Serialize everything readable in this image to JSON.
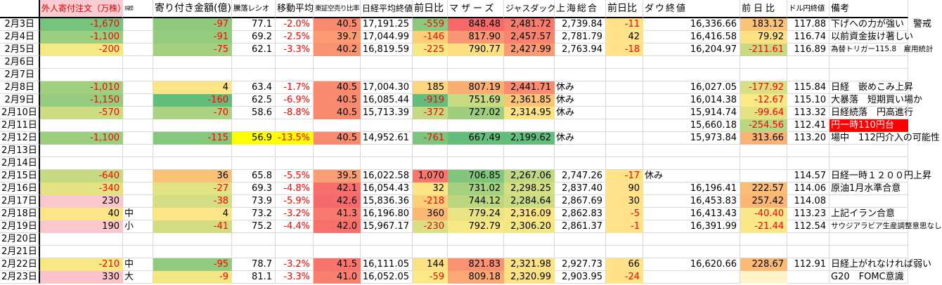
{
  "sheet": {
    "description_labels": {
      "holiday_label": "休み"
    },
    "table": {
      "columns": [
        {
          "key": "date",
          "label": "",
          "width": 57,
          "align": "right",
          "header_class": "hdr-md"
        },
        {
          "key": "foreign",
          "label": "外人寄付注文（万株）",
          "width": 118,
          "align": "right",
          "header_class": "hdr-sm",
          "header_bg": "#F9CBD2",
          "header_color": "#E60000"
        },
        {
          "key": "size",
          "label": "規模",
          "width": 43,
          "align": "left",
          "header_class": "hdr-tiny"
        },
        {
          "key": "opening",
          "label": "寄り付き金額(億)",
          "width": 112,
          "align": "right",
          "header_class": "hdr-lg"
        },
        {
          "key": "ratio",
          "label": "騰落レシオ",
          "width": 62,
          "align": "right",
          "header_class": "hdr-xs"
        },
        {
          "key": "ma",
          "label": "移動平均",
          "width": 54,
          "align": "right",
          "header_class": "hdr-md"
        },
        {
          "key": "short",
          "label": "東証空売り比率",
          "width": 67,
          "align": "right",
          "header_class": "hdr-xxs"
        },
        {
          "key": "nikkei",
          "label": "日経平均終値",
          "width": 74,
          "align": "right",
          "header_class": "hdr-sm"
        },
        {
          "key": "nikkei_chg",
          "label": "前日比",
          "width": 50,
          "align": "right",
          "header_class": "hdr-lg"
        },
        {
          "key": "mothers",
          "label": "マザーズ",
          "width": 80,
          "align": "right",
          "header_class": "hdr-spaced"
        },
        {
          "key": "jasdaq",
          "label": "ジャスダック",
          "width": 72,
          "align": "right",
          "header_class": "hdr-sm"
        },
        {
          "key": "shanghai",
          "label": "上海総合",
          "width": 73,
          "align": "right",
          "header_class": "hdr-spaced2"
        },
        {
          "key": "shanghai_chg",
          "label": "前日比",
          "width": 53,
          "align": "right",
          "header_class": "hdr-lg"
        },
        {
          "key": "dow",
          "label": "ダウ終値",
          "width": 138,
          "align": "right",
          "header_class": "hdr-spaced2"
        },
        {
          "key": "dow_chg",
          "label": "前日比",
          "width": 67,
          "align": "right",
          "header_class": "hdr-spaced"
        },
        {
          "key": "usdjpy",
          "label": "ドル円終値",
          "width": 60,
          "align": "right",
          "header_class": "hdr-xs"
        },
        {
          "key": "remark",
          "label": "備考",
          "width": 112,
          "align": "left",
          "header_class": "hdr-md"
        }
      ],
      "rows": [
        [
          "2月3日",
          [
            "-1,670",
            "#76C47E",
            "r"
          ],
          null,
          [
            "-97",
            "#8FCA7E",
            "r"
          ],
          "77.1",
          [
            "-2.0%",
            null,
            "r"
          ],
          [
            "40.5",
            "#F98A70"
          ],
          "17,191.25",
          [
            "-559",
            "#8CC97E",
            "r"
          ],
          [
            "848.48",
            "#F8696B"
          ],
          [
            "2,481.72",
            "#F87C6D"
          ],
          "2,739.84",
          [
            "-11",
            "#FFE289",
            "r"
          ],
          "16,336.66",
          [
            "183.12",
            "#FBC377"
          ],
          "117.88",
          "下げへの力が強い　警戒"
        ],
        [
          "2月4日",
          [
            "-1,100",
            "#9CCE7F",
            "r"
          ],
          null,
          [
            "-91",
            "#94CC7F",
            "r"
          ],
          "69.2",
          [
            "-2.5%",
            null,
            "r"
          ],
          [
            "39.7",
            "#FA9B73"
          ],
          "17,044.99",
          [
            "-146",
            "#FBCF7A",
            "r"
          ],
          [
            "817.90",
            "#FA9673"
          ],
          [
            "2,457.57",
            "#F8836E"
          ],
          "2,781.79",
          [
            "42",
            "#FFE289"
          ],
          "16,416.58",
          [
            "79.92",
            "#FCE184"
          ],
          "116.74",
          "以前資金抜け著しい"
        ],
        [
          "2月5日",
          [
            "-200",
            "#F5E984",
            "r"
          ],
          null,
          [
            "-75",
            "#A5D080",
            "r"
          ],
          "62.1",
          [
            "-3.3%",
            null,
            "r"
          ],
          [
            "40.2",
            "#FA9272"
          ],
          "16,819.59",
          [
            "-225",
            "#F7E884",
            "r"
          ],
          [
            "790.77",
            "#FBDF80"
          ],
          [
            "2,427.99",
            "#FA9B73"
          ],
          "2,763.94",
          [
            "-18",
            "#FFE289",
            "r"
          ],
          "16,204.97",
          [
            "-211.61",
            "#C9DB81",
            "r"
          ],
          "116.89",
          [
            "為替トリガー115.8　雇用統計",
            null,
            "s"
          ]
        ],
        [
          "2月6日",
          null,
          null,
          null,
          null,
          null,
          null,
          null,
          null,
          null,
          null,
          null,
          null,
          null,
          null,
          null,
          null
        ],
        [
          "2月7日",
          null,
          null,
          null,
          null,
          null,
          null,
          null,
          null,
          null,
          null,
          null,
          null,
          null,
          null,
          null,
          null
        ],
        [
          "2月8日",
          [
            "-1,010",
            "#A0CF80",
            "r"
          ],
          null,
          [
            "4",
            "#FBE586"
          ],
          "63.4",
          [
            "-1.7%",
            null,
            "r"
          ],
          [
            "40.5",
            "#F98A70"
          ],
          "17,004.30",
          [
            "185",
            "#FBD67D"
          ],
          [
            "807.19",
            "#FBAE74"
          ],
          [
            "2,441.71",
            "#F98B70"
          ],
          [
            "休み",
            null,
            "l"
          ],
          null,
          "16,027.05",
          [
            "-177.92",
            "#D9E082",
            "r"
          ],
          "115.84",
          "日経　嵌めこみ上昇"
        ],
        [
          "2月9日",
          [
            "-1,150",
            "#95CC7F",
            "r"
          ],
          null,
          [
            "-160",
            "#63BE7B",
            "r"
          ],
          "62.5",
          [
            "-6.9%",
            null,
            "r"
          ],
          [
            "40.5",
            "#F98A70"
          ],
          "16,085.44",
          [
            "-919",
            "#63BE7B",
            "r"
          ],
          [
            "751.69",
            "#C9DB81"
          ],
          [
            "2,361.85",
            "#FBC577"
          ],
          [
            "休み",
            null,
            "l"
          ],
          null,
          "16,014.38",
          [
            "-12.67",
            "#FAE985",
            "r"
          ],
          "115.10",
          "大暴落　短期買い場か"
        ],
        [
          "2月10日",
          [
            "-570",
            "#CCDC82",
            "r"
          ],
          null,
          [
            "-70",
            "#ACD381",
            "r"
          ],
          "58.6",
          [
            "-8.8%",
            null,
            "r"
          ],
          [
            "40.5",
            "#F98A70"
          ],
          "15,713.39",
          [
            "-372",
            "#C4D981",
            "r"
          ],
          [
            "727.02",
            "#9FCE7F"
          ],
          [
            "2,314.95",
            "#FBE385"
          ],
          [
            "休み",
            null,
            "l"
          ],
          null,
          "15,914.74",
          [
            "-99.64",
            "#E3E283",
            "r"
          ],
          "113.32",
          "日経続落　円高進行"
        ],
        [
          "2月11日",
          null,
          null,
          null,
          null,
          null,
          null,
          null,
          null,
          null,
          null,
          null,
          null,
          "15,660.18",
          [
            "-254.56",
            "#B9D680",
            "r"
          ],
          "112.41",
          [
            "円一時110円台",
            "#FF0000",
            "w"
          ]
        ],
        [
          "2月12日",
          [
            "-1,100",
            "#9CCE7F",
            "r"
          ],
          null,
          [
            "-115",
            "#85C77D",
            "r"
          ],
          [
            "56.9",
            "#FFFF00"
          ],
          [
            "-13.5%",
            "#FFFF00",
            "r"
          ],
          [
            "40.5",
            "#F98A70"
          ],
          "14,952.61",
          [
            "-761",
            "#7CC57C",
            "r"
          ],
          [
            "667.49",
            "#63BE7B"
          ],
          [
            "2,199.62",
            "#63BE7B"
          ],
          [
            "休み",
            null,
            "l"
          ],
          null,
          "15,973.84",
          [
            "313.66",
            "#FBB375"
          ],
          "113.20",
          "場中　112円介入の可能性"
        ],
        [
          "2月13日",
          null,
          null,
          null,
          null,
          null,
          null,
          null,
          null,
          null,
          null,
          null,
          null,
          null,
          null,
          null,
          null
        ],
        [
          "2月14日",
          null,
          null,
          null,
          null,
          null,
          null,
          null,
          null,
          null,
          null,
          null,
          null,
          null,
          null,
          null,
          null
        ],
        [
          "2月15日",
          [
            "-640",
            "#C6DA81",
            "r"
          ],
          null,
          [
            "36",
            "#FBC275"
          ],
          "65.8",
          [
            "-5.5%",
            null,
            "r"
          ],
          [
            "39.5",
            "#FA9F74"
          ],
          "16,022.58",
          [
            "1,070",
            "#F8766D"
          ],
          [
            "706.85",
            "#82C67D"
          ],
          [
            "2,267.06",
            "#C0D881"
          ],
          "2,747.26",
          [
            "-17",
            "#FFE289",
            "r"
          ],
          [
            "休み",
            null,
            "l"
          ],
          null,
          "114.57",
          "日経一時１２００円上昇"
        ],
        [
          "2月16日",
          [
            "-340",
            "#E3E383",
            "r"
          ],
          null,
          [
            "-27",
            "#E0E283",
            "r"
          ],
          "69.3",
          [
            "-4.8%",
            null,
            "r"
          ],
          [
            "42.1",
            "#F86E6C"
          ],
          "16,054.43",
          [
            "32",
            "#FBE386"
          ],
          [
            "731.02",
            "#A5D080"
          ],
          [
            "2,298.25",
            "#D5DE82"
          ],
          "2,837.40",
          [
            "90",
            "#FFE289"
          ],
          "16,196.41",
          [
            "222.57",
            "#FBBC76"
          ],
          "114.06",
          "原油1月水準合意"
        ],
        [
          "2月17日",
          [
            "230",
            "#FAC7CD"
          ],
          null,
          [
            "-38",
            "#D5DE82",
            "r"
          ],
          "73.9",
          [
            "-5.9%",
            null,
            "r"
          ],
          [
            "42.6",
            "#F8696B"
          ],
          "15,836.36",
          [
            "-218",
            "#FBCF7A",
            "r"
          ],
          [
            "744.12",
            "#BCD780"
          ],
          [
            "2,284.64",
            "#CCDC82"
          ],
          "2,867.69",
          [
            "30",
            "#FFE289"
          ],
          "16,453.83",
          [
            "257.42",
            "#FBB675"
          ],
          "114.08",
          null
        ],
        [
          "2月18日",
          [
            "40",
            "#FBE586"
          ],
          "中",
          [
            "4",
            "#FBE586"
          ],
          "73.2",
          [
            "-3.2%",
            null,
            "r"
          ],
          [
            "41.3",
            "#F8786D"
          ],
          "16,196.80",
          [
            "360",
            "#FBB873"
          ],
          [
            "779.24",
            "#E9E483"
          ],
          [
            "2,316.09",
            "#FBE485"
          ],
          "2,862.83",
          [
            "-5",
            "#FFE289",
            "r"
          ],
          "16,413.43",
          [
            "-40.40",
            "#FBE68A",
            "r"
          ],
          "113.23",
          "上記イラン合意"
        ],
        [
          "2月19日",
          [
            "190",
            "#FAC7CD"
          ],
          "小",
          [
            "-41",
            "#D2DD82",
            "r"
          ],
          "75.2",
          [
            "-4.4%",
            null,
            "r"
          ],
          [
            "42.0",
            "#F8706B"
          ],
          "15,967.17",
          [
            "-230",
            "#D9DF82",
            "r"
          ],
          [
            "792.79",
            "#F7E884"
          ],
          [
            "2,306.20",
            "#F3E784"
          ],
          "2,861.37",
          [
            "-1",
            "#FFE289",
            "r"
          ],
          "16,391.99",
          [
            "-21.44",
            "#FAE884",
            "r"
          ],
          "112.54",
          [
            "サウジアラビア生産調整意思なし",
            null,
            "s"
          ]
        ],
        [
          "2月20日",
          null,
          null,
          null,
          null,
          null,
          null,
          null,
          null,
          null,
          null,
          null,
          null,
          null,
          null,
          null,
          null
        ],
        [
          "2月21日",
          null,
          null,
          null,
          null,
          null,
          null,
          null,
          null,
          null,
          null,
          null,
          null,
          null,
          null,
          null,
          null
        ],
        [
          "2月22日",
          [
            "-210",
            "#F7E884",
            "r"
          ],
          "中",
          [
            "-95",
            "#91CB7E",
            "r"
          ],
          "78.7",
          [
            "-3.2%",
            null,
            "r"
          ],
          [
            "41.5",
            "#F8756D"
          ],
          "16,111.05",
          [
            "144",
            "#FBE085"
          ],
          [
            "821.83",
            "#FA9272"
          ],
          [
            "2,321.98",
            "#FBE286"
          ],
          "2,927.73",
          [
            "66",
            "#FFE289"
          ],
          "16,620.66",
          [
            "228.67",
            "#FBBB76"
          ],
          "112.91",
          "日経上がれなければ弱い"
        ],
        [
          "2月23日",
          [
            "330",
            "#FAC3C9"
          ],
          "大",
          [
            "-9",
            "#F2E784",
            "r"
          ],
          "81.1",
          [
            "-3.3%",
            null,
            "r"
          ],
          [
            "41.0",
            "#F97F6E"
          ],
          "16,052.05",
          [
            "-59",
            "#FBE985",
            "r"
          ],
          [
            "809.18",
            "#FBA974"
          ],
          [
            "2,320.99",
            "#FBE286"
          ],
          "2,903.95",
          [
            "-24",
            "#FFE289",
            "r"
          ],
          null,
          [
            "",
            "#FFF3C9"
          ],
          null,
          "G20　FOMC意識"
        ]
      ]
    },
    "colors": {
      "grid_line": "#D9D9D9",
      "heavy_border": "#000000",
      "negative_text": "#FF0000",
      "highlight_yellow": "#FFFF00",
      "alert_red": "#FF0000",
      "header_pink": "#F9CBD2",
      "scale_green": "#63BE7B",
      "scale_yellow": "#FFEB84",
      "scale_red": "#F8696B"
    }
  }
}
